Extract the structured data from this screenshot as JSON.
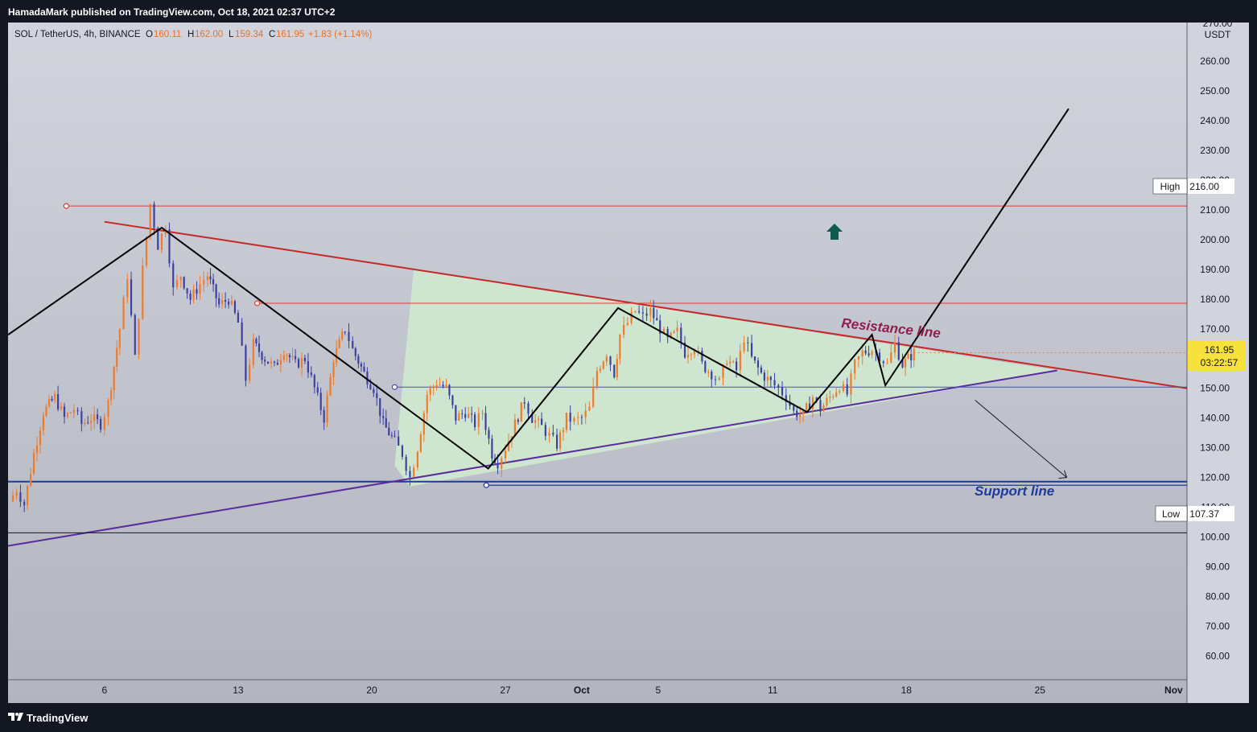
{
  "header": {
    "publisher_line": "HamadaMark published on TradingView.com, Oct 18, 2021 02:37 UTC+2"
  },
  "legend": {
    "symbol": "SOL / TetherUS, 4h, BINANCE",
    "o_label": "O",
    "o_value": "160.11",
    "h_label": "H",
    "h_value": "162.00",
    "l_label": "L",
    "l_value": "159.34",
    "c_label": "C",
    "c_value": "161.95",
    "change": "+1.83 (+1.14%)"
  },
  "price_axis": {
    "currency": "USDT",
    "top_cut_label": "270.00",
    "high_label": "High",
    "high_value": "216.00",
    "low_label": "Low",
    "low_value": "107.37",
    "last_price": "161.95",
    "countdown": "03:22:57"
  },
  "annotations": {
    "resistance": "Resistance line",
    "support": "Support line"
  },
  "footer": {
    "brand": "TradingView"
  },
  "colors": {
    "up": "#ef7a2a",
    "down": "#3c3f9e",
    "resistance": "#c62828",
    "support": "#1e3a9e",
    "trend": "#5b2a9e",
    "triangle_fill": "#cfe8cf",
    "last_price_bg": "#f7e13c",
    "arrow": "#0e5a4d"
  },
  "chart_data": {
    "type": "candlestick",
    "title": "SOL / TetherUS, 4h, BINANCE",
    "ylabel": "USDT",
    "ylim": [
      52,
      273
    ],
    "y_ticks": [
      60,
      70,
      80,
      90,
      100,
      110,
      120,
      130,
      140,
      150,
      160,
      170,
      180,
      190,
      200,
      210,
      220,
      230,
      240,
      250,
      260
    ],
    "x_ticks": [
      {
        "day": 6,
        "label": "6"
      },
      {
        "day": 13,
        "label": "13"
      },
      {
        "day": 20,
        "label": "20"
      },
      {
        "day": 27,
        "label": "27"
      },
      {
        "day": 31,
        "label": "Oct"
      },
      {
        "day": 35,
        "label": "5"
      },
      {
        "day": 41,
        "label": "11"
      },
      {
        "day": 48,
        "label": "18"
      },
      {
        "day": 55,
        "label": "25"
      },
      {
        "day": 62,
        "label": "Nov"
      }
    ],
    "x_range_days": [
      0.95,
      62.7
    ],
    "candle_path": [
      [
        1.0,
        112
      ],
      [
        1.4,
        116
      ],
      [
        1.8,
        111
      ],
      [
        2.3,
        128
      ],
      [
        2.8,
        142
      ],
      [
        3.4,
        147
      ],
      [
        3.9,
        140
      ],
      [
        4.4,
        143
      ],
      [
        4.8,
        138
      ],
      [
        5.3,
        140
      ],
      [
        5.8,
        138
      ],
      [
        6.2,
        145
      ],
      [
        6.8,
        170
      ],
      [
        7.2,
        188
      ],
      [
        7.6,
        160
      ],
      [
        8.0,
        190
      ],
      [
        8.4,
        212
      ],
      [
        8.8,
        198
      ],
      [
        9.2,
        205
      ],
      [
        9.6,
        183
      ],
      [
        10.0,
        188
      ],
      [
        10.5,
        180
      ],
      [
        11.0,
        185
      ],
      [
        11.4,
        188
      ],
      [
        12.0,
        178
      ],
      [
        12.5,
        180
      ],
      [
        13.0,
        172
      ],
      [
        13.4,
        153
      ],
      [
        13.8,
        165
      ],
      [
        14.4,
        160
      ],
      [
        14.9,
        157
      ],
      [
        15.4,
        163
      ],
      [
        16.0,
        158
      ],
      [
        16.5,
        160
      ],
      [
        17.0,
        150
      ],
      [
        17.5,
        140
      ],
      [
        18.0,
        160
      ],
      [
        18.6,
        170
      ],
      [
        19.0,
        163
      ],
      [
        19.6,
        155
      ],
      [
        20.1,
        150
      ],
      [
        20.6,
        138
      ],
      [
        21.2,
        132
      ],
      [
        21.6,
        128
      ],
      [
        22.0,
        120
      ],
      [
        22.4,
        130
      ],
      [
        22.9,
        148
      ],
      [
        23.4,
        152
      ],
      [
        23.9,
        150
      ],
      [
        24.4,
        140
      ],
      [
        24.9,
        142
      ],
      [
        25.4,
        138
      ],
      [
        25.8,
        142
      ],
      [
        26.3,
        128
      ],
      [
        26.6,
        125
      ],
      [
        27.0,
        130
      ],
      [
        27.5,
        138
      ],
      [
        28.0,
        146
      ],
      [
        28.4,
        140
      ],
      [
        28.9,
        137
      ],
      [
        29.3,
        134
      ],
      [
        29.7,
        131
      ],
      [
        30.2,
        140
      ],
      [
        30.6,
        139
      ],
      [
        31.0,
        140
      ],
      [
        31.4,
        143
      ],
      [
        31.8,
        156
      ],
      [
        32.3,
        162
      ],
      [
        32.7,
        155
      ],
      [
        33.0,
        168
      ],
      [
        33.4,
        172
      ],
      [
        33.8,
        176
      ],
      [
        34.2,
        174
      ],
      [
        34.6,
        176
      ],
      [
        35.1,
        170
      ],
      [
        35.5,
        166
      ],
      [
        36.0,
        169
      ],
      [
        36.4,
        162
      ],
      [
        36.9,
        164
      ],
      [
        37.3,
        158
      ],
      [
        37.8,
        155
      ],
      [
        38.2,
        152
      ],
      [
        38.6,
        160
      ],
      [
        39.1,
        156
      ],
      [
        39.5,
        167
      ],
      [
        39.9,
        160
      ],
      [
        40.4,
        155
      ],
      [
        40.9,
        152
      ],
      [
        41.3,
        150
      ],
      [
        41.7,
        147
      ],
      [
        42.1,
        142
      ],
      [
        42.6,
        141
      ],
      [
        43.1,
        147
      ],
      [
        43.5,
        143
      ],
      [
        44.0,
        147
      ],
      [
        44.5,
        151
      ],
      [
        44.9,
        148
      ],
      [
        45.3,
        158
      ],
      [
        45.7,
        162
      ],
      [
        46.2,
        163
      ],
      [
        46.6,
        161
      ],
      [
        47.0,
        158
      ],
      [
        47.4,
        165
      ],
      [
        47.8,
        158
      ],
      [
        48.1,
        160
      ],
      [
        48.4,
        162
      ]
    ],
    "drawn_lines": [
      {
        "name": "Resistance line",
        "from": [
          6.0,
          206
        ],
        "to": [
          62.7,
          150
        ]
      },
      {
        "name": "Support line",
        "from": [
          0.95,
          118.6
        ],
        "to": [
          62.7,
          118.6
        ]
      },
      {
        "name": "Rising trend line",
        "from": [
          0.95,
          97
        ],
        "to": [
          55.9,
          156
        ]
      },
      {
        "name": "Horizontal level",
        "from": [
          4.0,
          211.3
        ],
        "to": [
          62.7,
          211.3
        ]
      },
      {
        "name": "Horizontal level",
        "from": [
          14.0,
          178.6
        ],
        "to": [
          62.7,
          178.6
        ]
      },
      {
        "name": "Horizontal level",
        "from": [
          21.2,
          150.4
        ],
        "to": [
          62.7,
          150.4
        ]
      },
      {
        "name": "Horizontal level",
        "from": [
          26.0,
          117.4
        ],
        "to": [
          62.7,
          117.4
        ]
      },
      {
        "name": "Horizontal level",
        "from": [
          0.95,
          101.4
        ],
        "to": [
          62.7,
          101.4
        ]
      }
    ],
    "projection_path": [
      [
        0.95,
        168
      ],
      [
        9.0,
        204
      ],
      [
        26.1,
        123
      ],
      [
        32.9,
        177
      ],
      [
        42.8,
        142
      ],
      [
        46.2,
        168
      ],
      [
        46.9,
        151
      ],
      [
        56.5,
        244
      ]
    ],
    "projection_down": {
      "from": [
        51.6,
        146
      ],
      "to": [
        56.4,
        120
      ]
    }
  }
}
